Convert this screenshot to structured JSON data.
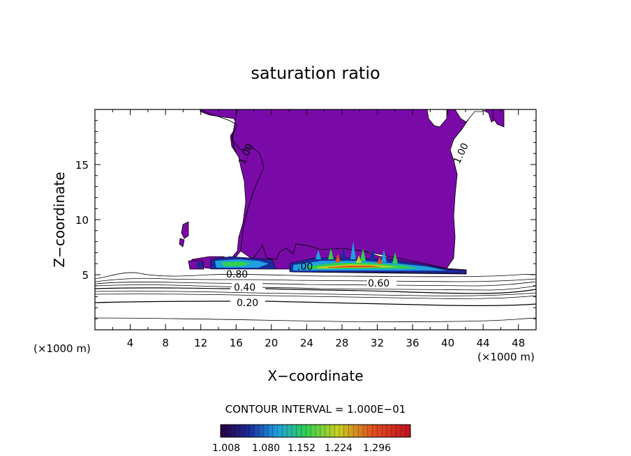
{
  "chart_data": {
    "type": "contour",
    "title": "saturation ratio",
    "xlabel": "X−coordinate",
    "ylabel": "Z−coordinate",
    "x_unit_left": "(×1000 m)",
    "x_unit_right": "(×1000 m)",
    "xlim": [
      0,
      50
    ],
    "ylim": [
      0,
      20
    ],
    "x_ticks": [
      4,
      8,
      12,
      16,
      20,
      24,
      28,
      32,
      36,
      40,
      44,
      48
    ],
    "y_ticks": [
      5,
      10,
      15
    ],
    "contour_interval_text": "CONTOUR INTERVAL = 1.000E−01",
    "contour_labels": [
      {
        "text": "1.00",
        "x": 17.7,
        "z": 15.5
      },
      {
        "text": "1.00",
        "x": 42.3,
        "z": 16.0
      },
      {
        "text": "0.80",
        "x": 16.0,
        "z": 5.0
      },
      {
        "text": "0.40",
        "x": 17.3,
        "z": 3.8
      },
      {
        "text": "0.20",
        "x": 17.3,
        "z": 2.5
      },
      {
        "text": "0.60",
        "x": 32.6,
        "z": 4.3
      },
      {
        "text": ".00",
        "x": 23.2,
        "z": 5.6
      }
    ],
    "shaded_region_min": 1.008,
    "colorbar": {
      "labels": [
        "1.008",
        "1.080",
        "1.152",
        "1.224",
        "1.296"
      ],
      "values": [
        1.008,
        1.08,
        1.152,
        1.224,
        1.296
      ],
      "colors": [
        "#2a0040",
        "#1a2a9a",
        "#1fa0e0",
        "#30d050",
        "#c8d020",
        "#e05020",
        "#c01020"
      ]
    },
    "fill_color": "#7a0aa8",
    "grid": false
  }
}
